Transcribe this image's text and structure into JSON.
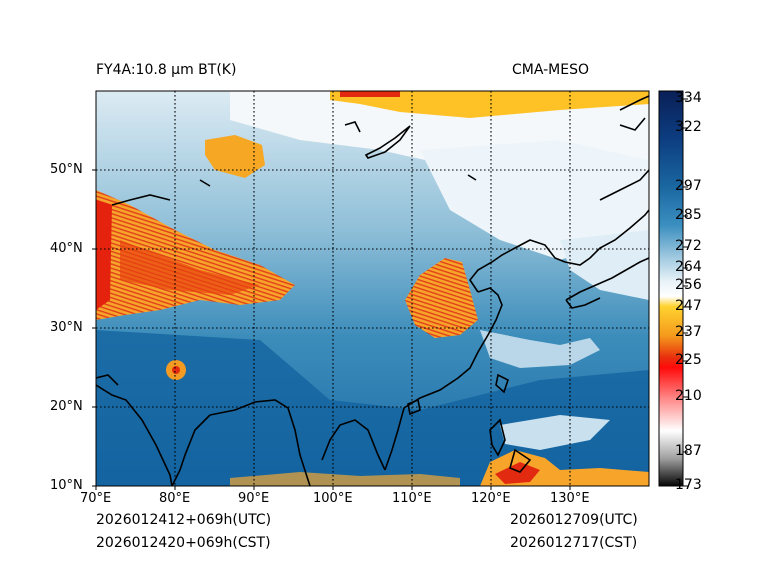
{
  "title_left": "FY4A:10.8 µm BT(K)",
  "title_right": "CMA-MESO",
  "footer": {
    "init_utc": "2026012412+069h(UTC)",
    "init_cst": "2026012420+069h(CST)",
    "valid_utc": "2026012709(UTC)",
    "valid_cst": "2026012717(CST)"
  },
  "map": {
    "lon_range": [
      70,
      140
    ],
    "lat_range": [
      10,
      60
    ],
    "lon_ticks": [
      {
        "value": 70,
        "label": "70°E"
      },
      {
        "value": 80,
        "label": "80°E"
      },
      {
        "value": 90,
        "label": "90°E"
      },
      {
        "value": 100,
        "label": "100°E"
      },
      {
        "value": 110,
        "label": "110°E"
      },
      {
        "value": 120,
        "label": "120°E"
      },
      {
        "value": 130,
        "label": "130°E"
      }
    ],
    "lat_ticks": [
      {
        "value": 10,
        "label": "10°N"
      },
      {
        "value": 20,
        "label": "20°N"
      },
      {
        "value": 30,
        "label": "30°N"
      },
      {
        "value": 40,
        "label": "40°N"
      },
      {
        "value": 50,
        "label": "50°N"
      }
    ]
  },
  "colorbar": {
    "range": [
      173,
      334
    ],
    "ticks": [
      334,
      322,
      297,
      285,
      272,
      264,
      256,
      247,
      237,
      225,
      210,
      187,
      173
    ]
  }
}
